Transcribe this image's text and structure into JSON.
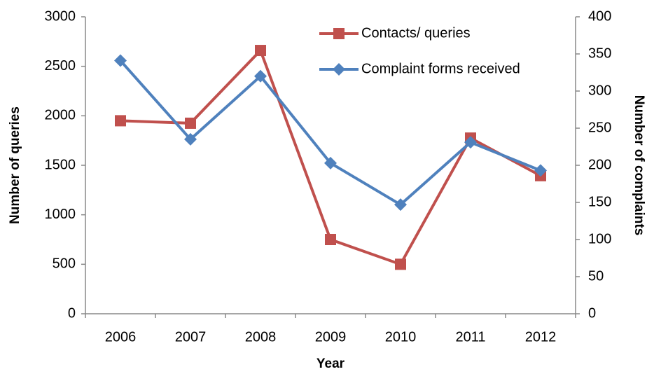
{
  "chart_data": {
    "type": "line",
    "x_label": "Year",
    "y_label": "Number of queries",
    "y2_label": "Number of complaints",
    "categories": [
      "2006",
      "2007",
      "2008",
      "2009",
      "2010",
      "2011",
      "2012"
    ],
    "series": [
      {
        "name": "Contacts/ queries",
        "color": "#c0504d",
        "marker": "square",
        "values": [
          1950,
          1925,
          2660,
          750,
          500,
          1775,
          1395
        ]
      },
      {
        "name": "Complaint forms received",
        "color": "#4f81bd",
        "marker": "diamond",
        "axis": "y2",
        "values": [
          341,
          235,
          320,
          203,
          147,
          231,
          193
        ]
      }
    ],
    "ylim": [
      0,
      3000
    ],
    "yticks": [
      0,
      500,
      1000,
      1500,
      2000,
      2500,
      3000
    ],
    "y2lim": [
      0,
      400
    ],
    "y2ticks": [
      0,
      50,
      100,
      150,
      200,
      250,
      300,
      350,
      400
    ],
    "legend": "top-right"
  }
}
